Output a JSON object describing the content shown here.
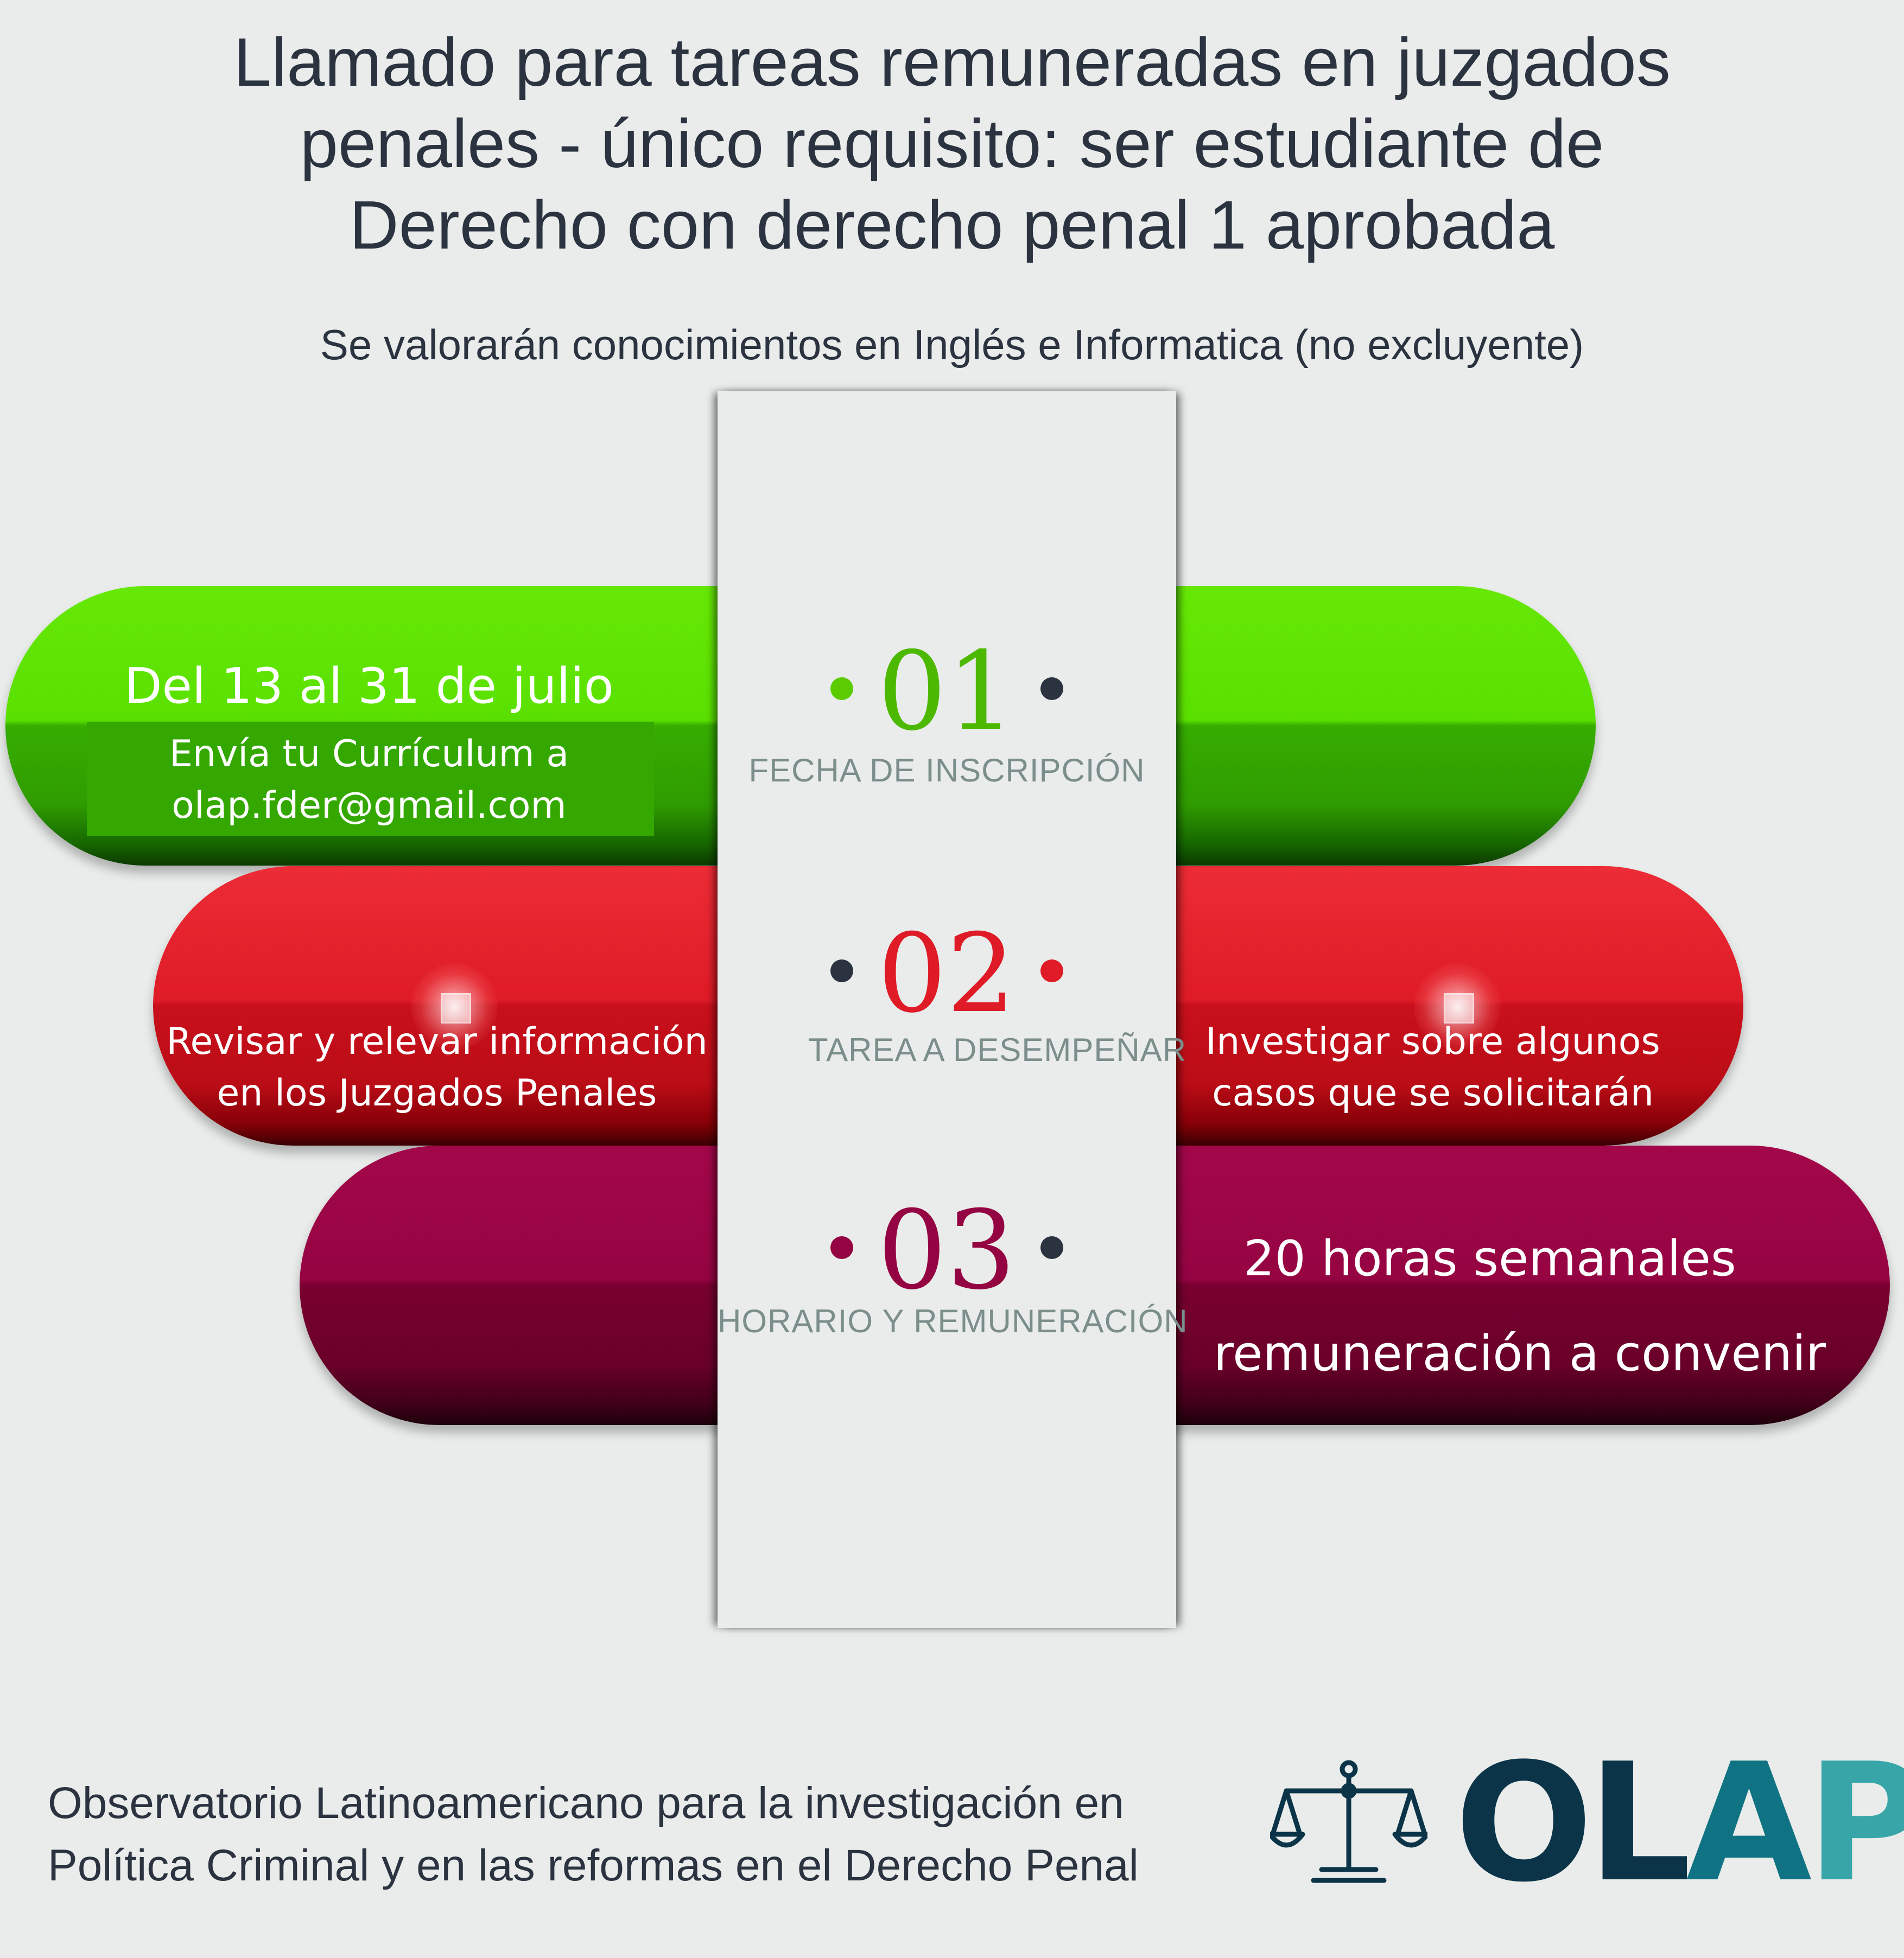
{
  "header": {
    "title_line1": "Llamado para tareas remuneradas en juzgados",
    "title_line2": "penales - único requisito: ser estudiante de",
    "title_line3": "Derecho con derecho penal 1 aprobada",
    "subtitle": "Se valorarán conocimientos en Inglés e Informatica (no excluyente)"
  },
  "steps": [
    {
      "number": "01",
      "label": "FECHA DE INSCRIPCIÓN",
      "left_line1": "Del 13 al 31 de julio",
      "left_line2": "Envía tu Currículum a",
      "left_line3": "olap.fder@gmail.com",
      "color": "#5ccc00"
    },
    {
      "number": "02",
      "label": "TAREA A DESEMPEÑAR",
      "left_line1": "Revisar y relevar información",
      "left_line2": "en los Juzgados Penales",
      "right_line1": "Investigar sobre algunos",
      "right_line2": "casos que se solicitarán",
      "color": "#de1b26"
    },
    {
      "number": "03",
      "label": "HORARIO Y REMUNERACIÓN",
      "right_line1": "20 horas semanales",
      "right_line2": "remuneración a convenir",
      "color": "#950442"
    }
  ],
  "dot_dark_color": "#2b3340",
  "footer": {
    "line1": "Observatorio Latinoamericano para la investigación en",
    "line2": "Política Criminal y en las reformas en el Derecho Penal"
  },
  "logo": {
    "icon": "scales-of-justice-icon",
    "letter_o": "O",
    "letter_l": "L",
    "letter_a": "A",
    "letter_p": "P"
  }
}
